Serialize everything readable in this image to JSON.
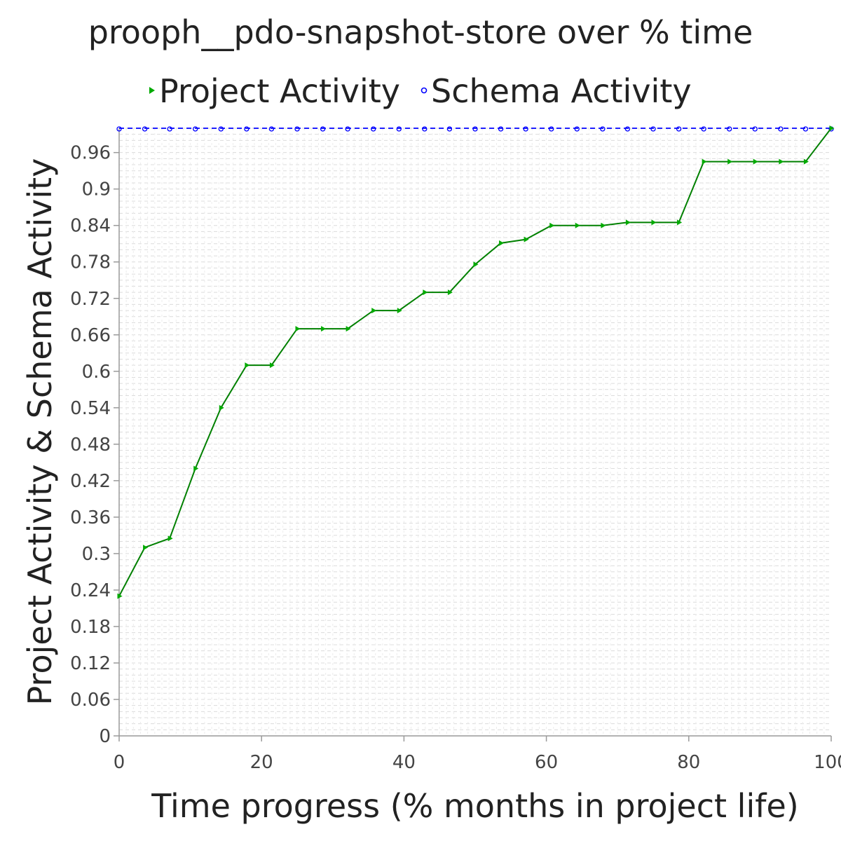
{
  "chart_data": {
    "type": "line",
    "title": "prooph__pdo-snapshot-store over % time",
    "xlabel": "Time progress (% months in project life)",
    "ylabel": "Project Activity & Schema Activity",
    "xlim": [
      0,
      100
    ],
    "ylim": [
      0,
      1
    ],
    "x_ticks": [
      "0",
      "20",
      "40",
      "60",
      "80",
      "100"
    ],
    "y_ticks": [
      "0",
      "0.06",
      "0.12",
      "0.18",
      "0.24",
      "0.3",
      "0.36",
      "0.42",
      "0.48",
      "0.54",
      "0.6",
      "0.66",
      "0.72",
      "0.78",
      "0.84",
      "0.9",
      "0.96"
    ],
    "grid": true,
    "legend_position": "top",
    "series": [
      {
        "name": "Project Activity",
        "color": "#008000",
        "marker": "triangle-right",
        "x": [
          0,
          3.6,
          7.1,
          10.7,
          14.3,
          17.9,
          21.4,
          25,
          28.6,
          32.1,
          35.7,
          39.3,
          42.9,
          46.4,
          50,
          53.6,
          57.1,
          60.7,
          64.3,
          67.9,
          71.4,
          75,
          78.6,
          82.1,
          85.7,
          89.3,
          92.9,
          96.4,
          100
        ],
        "values": [
          0.23,
          0.31,
          0.325,
          0.44,
          0.54,
          0.61,
          0.61,
          0.67,
          0.67,
          0.67,
          0.7,
          0.7,
          0.73,
          0.73,
          0.776,
          0.811,
          0.817,
          0.84,
          0.84,
          0.84,
          0.845,
          0.845,
          0.845,
          0.945,
          0.945,
          0.945,
          0.945,
          0.945,
          1.0
        ]
      },
      {
        "name": "Schema Activity",
        "color": "#0000ff",
        "marker": "circle",
        "x": [
          0,
          3.6,
          7.1,
          10.7,
          14.3,
          17.9,
          21.4,
          25,
          28.6,
          32.1,
          35.7,
          39.3,
          42.9,
          46.4,
          50,
          53.6,
          57.1,
          60.7,
          64.3,
          67.9,
          71.4,
          75,
          78.6,
          82.1,
          85.7,
          89.3,
          92.9,
          96.4,
          100
        ],
        "values": [
          1,
          1,
          1,
          1,
          1,
          1,
          1,
          1,
          1,
          1,
          1,
          1,
          1,
          1,
          1,
          1,
          1,
          1,
          1,
          1,
          1,
          1,
          1,
          1,
          1,
          1,
          1,
          1,
          1
        ]
      }
    ]
  }
}
